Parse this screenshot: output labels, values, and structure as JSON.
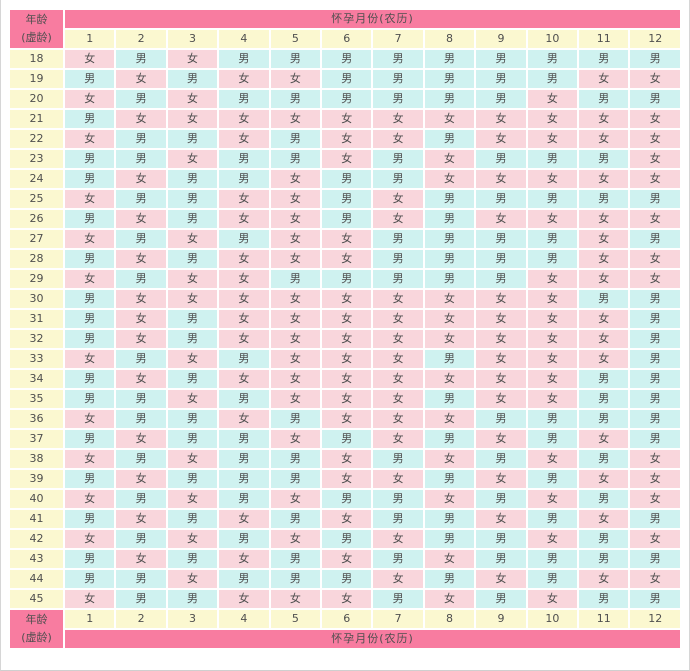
{
  "table_labels": {
    "corner_line1": "年龄",
    "corner_line2": "(虚龄)",
    "band_label": "怀孕月份(农历)"
  },
  "chart_data": {
    "type": "table",
    "title": "怀孕月份(农历)",
    "row_label_header": "年龄(虚龄)",
    "columns": [
      "1",
      "2",
      "3",
      "4",
      "5",
      "6",
      "7",
      "8",
      "9",
      "10",
      "11",
      "12"
    ],
    "legend": {
      "boy": "男",
      "girl": "女"
    },
    "colors": {
      "band_bg": "#f87ca0",
      "band_text": "#c34a66",
      "corner_text": "#bf4a55",
      "month_bg": "#fbf8d0",
      "month_text": "#bc4b40",
      "boy_bg": "#cff2f0",
      "girl_bg": "#f9d6dc",
      "cell_text": "#4f4f4f",
      "grid": "#ffffff",
      "sep": "#a2454b",
      "outer": "#9a9a9a"
    },
    "rows": [
      {
        "age": "18",
        "values": [
          "女",
          "男",
          "女",
          "男",
          "男",
          "男",
          "男",
          "男",
          "男",
          "男",
          "男",
          "男"
        ]
      },
      {
        "age": "19",
        "values": [
          "男",
          "女",
          "男",
          "女",
          "女",
          "男",
          "男",
          "男",
          "男",
          "男",
          "女",
          "女"
        ]
      },
      {
        "age": "20",
        "values": [
          "女",
          "男",
          "女",
          "男",
          "男",
          "男",
          "男",
          "男",
          "男",
          "女",
          "男",
          "男"
        ]
      },
      {
        "age": "21",
        "values": [
          "男",
          "女",
          "女",
          "女",
          "女",
          "女",
          "女",
          "女",
          "女",
          "女",
          "女",
          "女"
        ]
      },
      {
        "age": "22",
        "values": [
          "女",
          "男",
          "男",
          "女",
          "男",
          "女",
          "女",
          "男",
          "女",
          "女",
          "女",
          "女"
        ]
      },
      {
        "age": "23",
        "values": [
          "男",
          "男",
          "女",
          "男",
          "男",
          "女",
          "男",
          "女",
          "男",
          "男",
          "男",
          "女"
        ]
      },
      {
        "age": "24",
        "values": [
          "男",
          "女",
          "男",
          "男",
          "女",
          "男",
          "男",
          "女",
          "女",
          "女",
          "女",
          "女"
        ]
      },
      {
        "age": "25",
        "values": [
          "女",
          "男",
          "男",
          "女",
          "女",
          "男",
          "女",
          "男",
          "男",
          "男",
          "男",
          "男"
        ]
      },
      {
        "age": "26",
        "values": [
          "男",
          "女",
          "男",
          "女",
          "女",
          "男",
          "女",
          "男",
          "女",
          "女",
          "女",
          "女"
        ]
      },
      {
        "age": "27",
        "values": [
          "女",
          "男",
          "女",
          "男",
          "女",
          "女",
          "男",
          "男",
          "男",
          "男",
          "女",
          "男"
        ]
      },
      {
        "age": "28",
        "values": [
          "男",
          "女",
          "男",
          "女",
          "女",
          "女",
          "男",
          "男",
          "男",
          "男",
          "女",
          "女"
        ]
      },
      {
        "age": "29",
        "values": [
          "女",
          "男",
          "女",
          "女",
          "男",
          "男",
          "男",
          "男",
          "男",
          "女",
          "女",
          "女"
        ]
      },
      {
        "age": "30",
        "values": [
          "男",
          "女",
          "女",
          "女",
          "女",
          "女",
          "女",
          "女",
          "女",
          "女",
          "男",
          "男"
        ]
      },
      {
        "age": "31",
        "values": [
          "男",
          "女",
          "男",
          "女",
          "女",
          "女",
          "女",
          "女",
          "女",
          "女",
          "女",
          "男"
        ]
      },
      {
        "age": "32",
        "values": [
          "男",
          "女",
          "男",
          "女",
          "女",
          "女",
          "女",
          "女",
          "女",
          "女",
          "女",
          "男"
        ]
      },
      {
        "age": "33",
        "values": [
          "女",
          "男",
          "女",
          "男",
          "女",
          "女",
          "女",
          "男",
          "女",
          "女",
          "女",
          "男"
        ]
      },
      {
        "age": "34",
        "values": [
          "男",
          "女",
          "男",
          "女",
          "女",
          "女",
          "女",
          "女",
          "女",
          "女",
          "男",
          "男"
        ]
      },
      {
        "age": "35",
        "values": [
          "男",
          "男",
          "女",
          "男",
          "女",
          "女",
          "女",
          "男",
          "女",
          "女",
          "男",
          "男"
        ]
      },
      {
        "age": "36",
        "values": [
          "女",
          "男",
          "男",
          "女",
          "男",
          "女",
          "女",
          "女",
          "男",
          "男",
          "男",
          "男"
        ]
      },
      {
        "age": "37",
        "values": [
          "男",
          "女",
          "男",
          "男",
          "女",
          "男",
          "女",
          "男",
          "女",
          "男",
          "女",
          "男"
        ]
      },
      {
        "age": "38",
        "values": [
          "女",
          "男",
          "女",
          "男",
          "男",
          "女",
          "男",
          "女",
          "男",
          "女",
          "男",
          "女"
        ]
      },
      {
        "age": "39",
        "values": [
          "男",
          "女",
          "男",
          "男",
          "男",
          "女",
          "女",
          "男",
          "女",
          "男",
          "女",
          "女"
        ]
      },
      {
        "age": "40",
        "values": [
          "女",
          "男",
          "女",
          "男",
          "女",
          "男",
          "男",
          "女",
          "男",
          "女",
          "男",
          "女"
        ]
      },
      {
        "age": "41",
        "values": [
          "男",
          "女",
          "男",
          "女",
          "男",
          "女",
          "男",
          "男",
          "女",
          "男",
          "女",
          "男"
        ]
      },
      {
        "age": "42",
        "values": [
          "女",
          "男",
          "女",
          "男",
          "女",
          "男",
          "女",
          "男",
          "男",
          "女",
          "男",
          "女"
        ]
      },
      {
        "age": "43",
        "values": [
          "男",
          "女",
          "男",
          "女",
          "男",
          "女",
          "男",
          "女",
          "男",
          "男",
          "男",
          "男"
        ]
      },
      {
        "age": "44",
        "values": [
          "男",
          "男",
          "女",
          "男",
          "男",
          "男",
          "女",
          "男",
          "女",
          "男",
          "女",
          "女"
        ]
      },
      {
        "age": "45",
        "values": [
          "女",
          "男",
          "男",
          "女",
          "女",
          "女",
          "男",
          "女",
          "男",
          "女",
          "男",
          "男"
        ]
      }
    ]
  }
}
